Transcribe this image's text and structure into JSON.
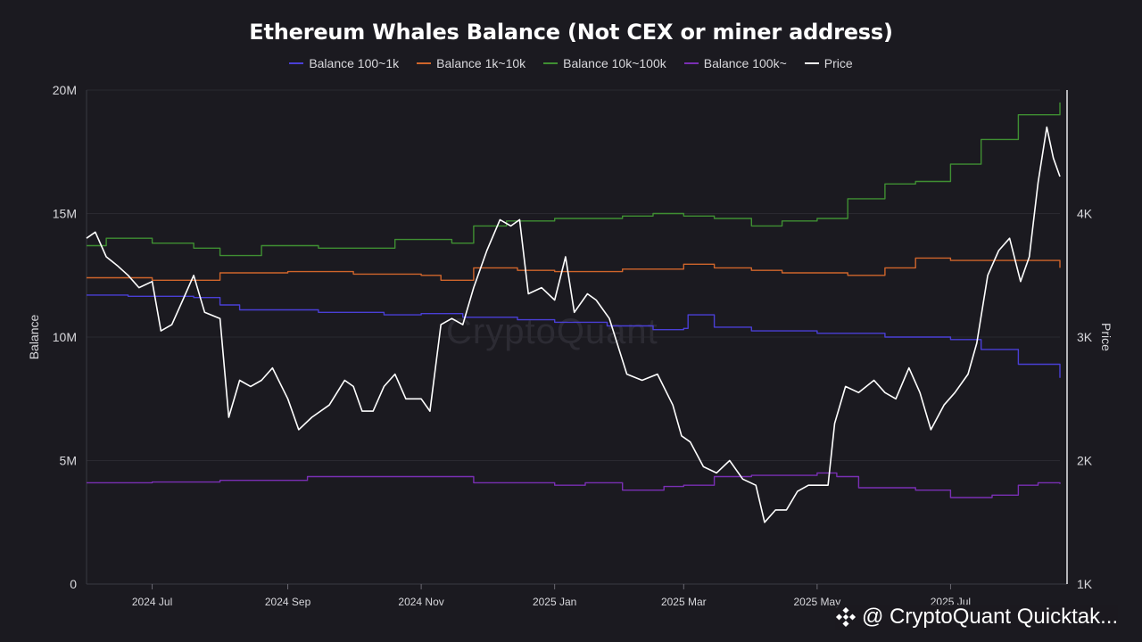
{
  "chart_data": {
    "type": "line",
    "title": "Ethereum Whales Balance (Not CEX or miner address)",
    "y_left_label": "Balance",
    "y_right_label": "Price",
    "y_left_ticks": [
      "0",
      "5M",
      "10M",
      "15M",
      "20M"
    ],
    "y_left_range": [
      0,
      20000000
    ],
    "y_right_ticks": [
      "1K",
      "2K",
      "3K",
      "4K"
    ],
    "y_right_range": [
      1000,
      5000
    ],
    "x_range": [
      "2024-06-01",
      "2025-08-20"
    ],
    "x_ticks": [
      {
        "label": "2024 Jul",
        "date": "2024-07-01"
      },
      {
        "label": "2024 Sep",
        "date": "2024-09-01"
      },
      {
        "label": "2024 Nov",
        "date": "2024-11-01"
      },
      {
        "label": "2025 Jan",
        "date": "2025-01-01"
      },
      {
        "label": "2025 Mar",
        "date": "2025-03-01"
      },
      {
        "label": "2025 May",
        "date": "2025-05-01"
      },
      {
        "label": "2025 Jul",
        "date": "2025-07-01"
      }
    ],
    "legend_position": "top-center",
    "grid": true,
    "series": [
      {
        "name": "Balance 100~1k",
        "color": "#4a3fd6",
        "axis": "left",
        "step": true,
        "points": [
          [
            "2024-06-01",
            11700000
          ],
          [
            "2024-06-20",
            11650000
          ],
          [
            "2024-07-20",
            11600000
          ],
          [
            "2024-08-01",
            11300000
          ],
          [
            "2024-08-10",
            11100000
          ],
          [
            "2024-09-15",
            11000000
          ],
          [
            "2024-10-15",
            10900000
          ],
          [
            "2024-11-01",
            10950000
          ],
          [
            "2024-11-20",
            10800000
          ],
          [
            "2024-12-15",
            10700000
          ],
          [
            "2025-01-01",
            10600000
          ],
          [
            "2025-01-25",
            10450000
          ],
          [
            "2025-02-15",
            10300000
          ],
          [
            "2025-03-01",
            10350000
          ],
          [
            "2025-03-03",
            10900000
          ],
          [
            "2025-03-15",
            10400000
          ],
          [
            "2025-04-01",
            10250000
          ],
          [
            "2025-05-01",
            10150000
          ],
          [
            "2025-06-01",
            10000000
          ],
          [
            "2025-07-01",
            9900000
          ],
          [
            "2025-07-15",
            9500000
          ],
          [
            "2025-08-01",
            8900000
          ],
          [
            "2025-08-20",
            8350000
          ]
        ]
      },
      {
        "name": "Balance 1k~10k",
        "color": "#d0652b",
        "axis": "left",
        "step": true,
        "points": [
          [
            "2024-06-01",
            12400000
          ],
          [
            "2024-07-01",
            12300000
          ],
          [
            "2024-07-25",
            12300000
          ],
          [
            "2024-08-01",
            12600000
          ],
          [
            "2024-09-01",
            12650000
          ],
          [
            "2024-10-01",
            12550000
          ],
          [
            "2024-11-01",
            12500000
          ],
          [
            "2024-11-10",
            12300000
          ],
          [
            "2024-11-25",
            12800000
          ],
          [
            "2024-12-15",
            12700000
          ],
          [
            "2025-01-01",
            12650000
          ],
          [
            "2025-02-01",
            12750000
          ],
          [
            "2025-03-01",
            12950000
          ],
          [
            "2025-03-15",
            12800000
          ],
          [
            "2025-04-01",
            12700000
          ],
          [
            "2025-04-15",
            12600000
          ],
          [
            "2025-05-15",
            12500000
          ],
          [
            "2025-06-01",
            12800000
          ],
          [
            "2025-06-15",
            13200000
          ],
          [
            "2025-07-01",
            13100000
          ],
          [
            "2025-08-01",
            13100000
          ],
          [
            "2025-08-20",
            12800000
          ]
        ]
      },
      {
        "name": "Balance 10k~100k",
        "color": "#3f8f32",
        "axis": "left",
        "step": true,
        "points": [
          [
            "2024-06-01",
            13700000
          ],
          [
            "2024-06-10",
            14000000
          ],
          [
            "2024-07-01",
            13800000
          ],
          [
            "2024-07-20",
            13600000
          ],
          [
            "2024-08-01",
            13300000
          ],
          [
            "2024-08-20",
            13700000
          ],
          [
            "2024-09-15",
            13600000
          ],
          [
            "2024-10-15",
            13600000
          ],
          [
            "2024-10-20",
            13950000
          ],
          [
            "2024-11-15",
            13800000
          ],
          [
            "2024-11-25",
            14500000
          ],
          [
            "2024-12-10",
            14700000
          ],
          [
            "2025-01-01",
            14800000
          ],
          [
            "2025-02-01",
            14900000
          ],
          [
            "2025-02-15",
            15000000
          ],
          [
            "2025-03-01",
            14900000
          ],
          [
            "2025-03-15",
            14800000
          ],
          [
            "2025-04-01",
            14500000
          ],
          [
            "2025-04-15",
            14700000
          ],
          [
            "2025-05-01",
            14800000
          ],
          [
            "2025-05-15",
            15600000
          ],
          [
            "2025-06-01",
            16200000
          ],
          [
            "2025-06-15",
            16300000
          ],
          [
            "2025-07-01",
            17000000
          ],
          [
            "2025-07-15",
            18000000
          ],
          [
            "2025-08-01",
            19000000
          ],
          [
            "2025-08-20",
            19500000
          ]
        ]
      },
      {
        "name": "Balance 100k~",
        "color": "#7a2fb4",
        "axis": "left",
        "step": true,
        "points": [
          [
            "2024-06-01",
            4100000
          ],
          [
            "2024-07-01",
            4130000
          ],
          [
            "2024-08-01",
            4200000
          ],
          [
            "2024-09-01",
            4200000
          ],
          [
            "2024-09-10",
            4350000
          ],
          [
            "2024-10-01",
            4350000
          ],
          [
            "2024-11-01",
            4350000
          ],
          [
            "2024-11-25",
            4100000
          ],
          [
            "2025-01-01",
            4000000
          ],
          [
            "2025-01-15",
            4100000
          ],
          [
            "2025-02-01",
            3800000
          ],
          [
            "2025-02-20",
            3950000
          ],
          [
            "2025-03-01",
            4000000
          ],
          [
            "2025-03-15",
            4350000
          ],
          [
            "2025-04-01",
            4400000
          ],
          [
            "2025-05-01",
            4500000
          ],
          [
            "2025-05-10",
            4350000
          ],
          [
            "2025-05-20",
            3900000
          ],
          [
            "2025-06-15",
            3800000
          ],
          [
            "2025-07-01",
            3500000
          ],
          [
            "2025-07-20",
            3600000
          ],
          [
            "2025-08-01",
            4000000
          ],
          [
            "2025-08-10",
            4100000
          ],
          [
            "2025-08-20",
            4050000
          ]
        ]
      },
      {
        "name": "Price",
        "color": "#ffffff",
        "axis": "right",
        "step": false,
        "points": [
          [
            "2024-06-01",
            3800
          ],
          [
            "2024-06-05",
            3850
          ],
          [
            "2024-06-10",
            3650
          ],
          [
            "2024-06-15",
            3580
          ],
          [
            "2024-06-20",
            3500
          ],
          [
            "2024-06-25",
            3400
          ],
          [
            "2024-07-01",
            3450
          ],
          [
            "2024-07-05",
            3050
          ],
          [
            "2024-07-10",
            3100
          ],
          [
            "2024-07-15",
            3300
          ],
          [
            "2024-07-20",
            3500
          ],
          [
            "2024-07-25",
            3200
          ],
          [
            "2024-08-01",
            3150
          ],
          [
            "2024-08-05",
            2350
          ],
          [
            "2024-08-10",
            2650
          ],
          [
            "2024-08-15",
            2600
          ],
          [
            "2024-08-20",
            2650
          ],
          [
            "2024-08-25",
            2750
          ],
          [
            "2024-09-01",
            2500
          ],
          [
            "2024-09-06",
            2250
          ],
          [
            "2024-09-12",
            2350
          ],
          [
            "2024-09-20",
            2450
          ],
          [
            "2024-09-27",
            2650
          ],
          [
            "2024-10-01",
            2600
          ],
          [
            "2024-10-05",
            2400
          ],
          [
            "2024-10-10",
            2400
          ],
          [
            "2024-10-15",
            2600
          ],
          [
            "2024-10-20",
            2700
          ],
          [
            "2024-10-25",
            2500
          ],
          [
            "2024-11-01",
            2500
          ],
          [
            "2024-11-05",
            2400
          ],
          [
            "2024-11-10",
            3100
          ],
          [
            "2024-11-15",
            3150
          ],
          [
            "2024-11-20",
            3100
          ],
          [
            "2024-11-25",
            3400
          ],
          [
            "2024-12-01",
            3700
          ],
          [
            "2024-12-07",
            3950
          ],
          [
            "2024-12-12",
            3900
          ],
          [
            "2024-12-16",
            3950
          ],
          [
            "2024-12-20",
            3350
          ],
          [
            "2024-12-26",
            3400
          ],
          [
            "2025-01-01",
            3300
          ],
          [
            "2025-01-06",
            3650
          ],
          [
            "2025-01-10",
            3200
          ],
          [
            "2025-01-16",
            3350
          ],
          [
            "2025-01-20",
            3300
          ],
          [
            "2025-01-26",
            3150
          ],
          [
            "2025-02-03",
            2700
          ],
          [
            "2025-02-10",
            2650
          ],
          [
            "2025-02-17",
            2700
          ],
          [
            "2025-02-24",
            2450
          ],
          [
            "2025-02-28",
            2200
          ],
          [
            "2025-03-04",
            2150
          ],
          [
            "2025-03-10",
            1950
          ],
          [
            "2025-03-16",
            1900
          ],
          [
            "2025-03-22",
            2000
          ],
          [
            "2025-03-28",
            1850
          ],
          [
            "2025-04-03",
            1800
          ],
          [
            "2025-04-07",
            1500
          ],
          [
            "2025-04-12",
            1600
          ],
          [
            "2025-04-17",
            1600
          ],
          [
            "2025-04-22",
            1750
          ],
          [
            "2025-04-27",
            1800
          ],
          [
            "2025-05-01",
            1800
          ],
          [
            "2025-05-06",
            1800
          ],
          [
            "2025-05-09",
            2300
          ],
          [
            "2025-05-14",
            2600
          ],
          [
            "2025-05-20",
            2550
          ],
          [
            "2025-05-27",
            2650
          ],
          [
            "2025-06-01",
            2550
          ],
          [
            "2025-06-06",
            2500
          ],
          [
            "2025-06-12",
            2750
          ],
          [
            "2025-06-17",
            2550
          ],
          [
            "2025-06-22",
            2250
          ],
          [
            "2025-06-28",
            2450
          ],
          [
            "2025-07-03",
            2550
          ],
          [
            "2025-07-09",
            2700
          ],
          [
            "2025-07-13",
            2950
          ],
          [
            "2025-07-18",
            3500
          ],
          [
            "2025-07-23",
            3700
          ],
          [
            "2025-07-28",
            3800
          ],
          [
            "2025-08-02",
            3450
          ],
          [
            "2025-08-06",
            3650
          ],
          [
            "2025-08-10",
            4250
          ],
          [
            "2025-08-14",
            4700
          ],
          [
            "2025-08-17",
            4450
          ],
          [
            "2025-08-20",
            4300
          ]
        ]
      }
    ]
  },
  "watermark": "CryptoQuant",
  "footer": {
    "brand_text": "@ CryptoQuant Quicktak...",
    "icon": "binance-diamond-icon"
  }
}
